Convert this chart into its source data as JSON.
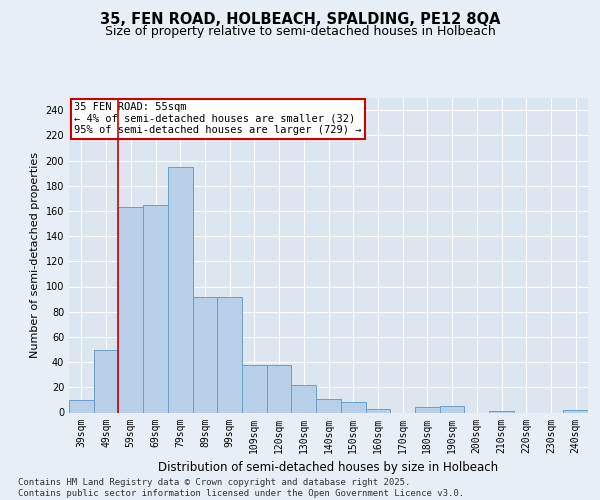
{
  "title": "35, FEN ROAD, HOLBEACH, SPALDING, PE12 8QA",
  "subtitle": "Size of property relative to semi-detached houses in Holbeach",
  "xlabel": "Distribution of semi-detached houses by size in Holbeach",
  "ylabel": "Number of semi-detached properties",
  "categories": [
    "39sqm",
    "49sqm",
    "59sqm",
    "69sqm",
    "79sqm",
    "89sqm",
    "99sqm",
    "109sqm",
    "120sqm",
    "130sqm",
    "140sqm",
    "150sqm",
    "160sqm",
    "170sqm",
    "180sqm",
    "190sqm",
    "200sqm",
    "210sqm",
    "220sqm",
    "230sqm",
    "240sqm"
  ],
  "values": [
    10,
    50,
    163,
    165,
    195,
    92,
    92,
    38,
    38,
    22,
    11,
    8,
    3,
    0,
    4,
    5,
    0,
    1,
    0,
    0,
    2
  ],
  "bar_color": "#b8cfe8",
  "bar_edge_color": "#6a9fc8",
  "vline_color": "#cc0000",
  "annotation_text": "35 FEN ROAD: 55sqm\n← 4% of semi-detached houses are smaller (32)\n95% of semi-detached houses are larger (729) →",
  "ylim": [
    0,
    250
  ],
  "yticks": [
    0,
    20,
    40,
    60,
    80,
    100,
    120,
    140,
    160,
    180,
    200,
    220,
    240
  ],
  "bg_color": "#e8eef5",
  "plot_bg_color": "#dce6f0",
  "footer_text": "Contains HM Land Registry data © Crown copyright and database right 2025.\nContains public sector information licensed under the Open Government Licence v3.0.",
  "title_fontsize": 10.5,
  "subtitle_fontsize": 9,
  "xlabel_fontsize": 8.5,
  "ylabel_fontsize": 8,
  "tick_fontsize": 7,
  "annotation_fontsize": 7.5,
  "footer_fontsize": 6.5
}
